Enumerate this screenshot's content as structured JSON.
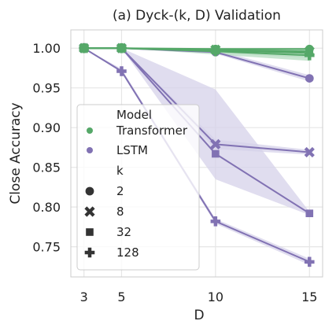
{
  "chart_data": {
    "type": "line",
    "title": "(a) Dyck-(k, D) Validation",
    "xlabel": "D",
    "ylabel": "Close Accuracy",
    "x_ticks": [
      3,
      5,
      10,
      15
    ],
    "y_ticks": [
      "0.75",
      "0.80",
      "0.85",
      "0.90",
      "0.95",
      "1.00"
    ],
    "xlim": [
      2.3,
      15.7
    ],
    "ylim": [
      0.712,
      1.023
    ],
    "grid": true,
    "legend_position": "left",
    "legend": {
      "model_title": "Model",
      "models": [
        "Transformer",
        "LSTM"
      ],
      "k_title": "k",
      "ks": [
        "2",
        "8",
        "32",
        "128"
      ]
    },
    "colors": {
      "Transformer": "#55a868",
      "LSTM": "#8172b3",
      "marker_gray": "#333333",
      "band_lstm": "#d6d1ea",
      "band_transformer": "#b7dcc1"
    },
    "marker_shapes": {
      "2": "circle",
      "8": "x",
      "32": "square",
      "128": "plus"
    },
    "x": [
      3,
      5,
      10,
      15
    ],
    "series": [
      {
        "model": "Transformer",
        "k": "2",
        "values": [
          1.0,
          1.0,
          0.999,
          0.999
        ],
        "band_low": [
          1.0,
          1.0,
          0.997,
          0.996
        ],
        "band_high": [
          1.0,
          1.0,
          1.0,
          1.0
        ]
      },
      {
        "model": "Transformer",
        "k": "8",
        "values": [
          1.0,
          1.0,
          0.998,
          0.996
        ],
        "band_low": [
          1.0,
          1.0,
          0.996,
          0.993
        ],
        "band_high": [
          1.0,
          1.0,
          1.0,
          0.999
        ]
      },
      {
        "model": "Transformer",
        "k": "32",
        "values": [
          1.0,
          1.0,
          0.997,
          0.994
        ],
        "band_low": [
          1.0,
          1.0,
          0.994,
          0.988
        ],
        "band_high": [
          1.0,
          1.0,
          1.0,
          0.999
        ]
      },
      {
        "model": "Transformer",
        "k": "128",
        "values": [
          1.0,
          1.0,
          0.996,
          0.991
        ],
        "band_low": [
          1.0,
          1.0,
          0.992,
          0.984
        ],
        "band_high": [
          1.0,
          1.0,
          1.0,
          0.999
        ]
      },
      {
        "model": "LSTM",
        "k": "2",
        "values": [
          1.0,
          1.0,
          0.995,
          0.962
        ],
        "band_low": [
          1.0,
          1.0,
          0.993,
          0.958
        ],
        "band_high": [
          1.0,
          1.0,
          0.998,
          0.966
        ]
      },
      {
        "model": "LSTM",
        "k": "8",
        "values": [
          1.0,
          1.0,
          0.879,
          0.869
        ],
        "band_low": [
          1.0,
          1.0,
          0.873,
          0.866
        ],
        "band_high": [
          1.0,
          1.0,
          0.885,
          0.872
        ]
      },
      {
        "model": "LSTM",
        "k": "32",
        "values": [
          1.0,
          1.0,
          0.867,
          0.792
        ],
        "band_low": [
          1.0,
          1.0,
          0.835,
          0.79
        ],
        "band_high": [
          1.0,
          1.0,
          0.948,
          0.794
        ]
      },
      {
        "model": "LSTM",
        "k": "128",
        "values": [
          1.0,
          0.971,
          0.782,
          0.731
        ],
        "band_low": [
          1.0,
          0.969,
          0.779,
          0.727
        ],
        "band_high": [
          1.0,
          0.974,
          0.785,
          0.735
        ]
      }
    ]
  }
}
